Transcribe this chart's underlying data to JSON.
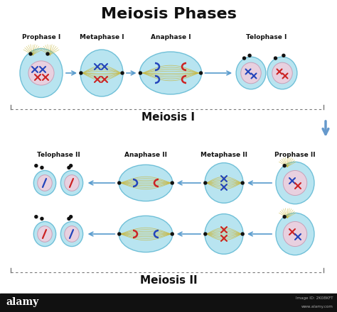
{
  "title": "Meiosis Phases",
  "title_fontsize": 16,
  "title_fontweight": "bold",
  "bg_color": "#ffffff",
  "cell_outer_color": "#b8e4f0",
  "cell_outer_edge": "#70c0d8",
  "nucleus_color": "#e8d0df",
  "nucleus_edge": "#c8a0b8",
  "spindle_color": "#c8b840",
  "chrom_blue": "#2244bb",
  "chrom_red": "#cc2222",
  "arrow_color": "#5599cc",
  "down_arrow_color": "#6699cc",
  "meiosis1_label": "Meiosis I",
  "meiosis2_label": "Meiosis II",
  "row1_labels": [
    "Prophase I",
    "Metaphase I",
    "Anaphase I",
    "Telophase I"
  ],
  "row2_labels": [
    "Telophase II",
    "Anaphase II",
    "Metaphase II",
    "Prophase II"
  ],
  "alamy_text": "alamy",
  "alamy_extra": "Image ID: 2K08KFT\nwww.alamy.com",
  "bracket_color": "#777777",
  "dot_color": "#111111"
}
